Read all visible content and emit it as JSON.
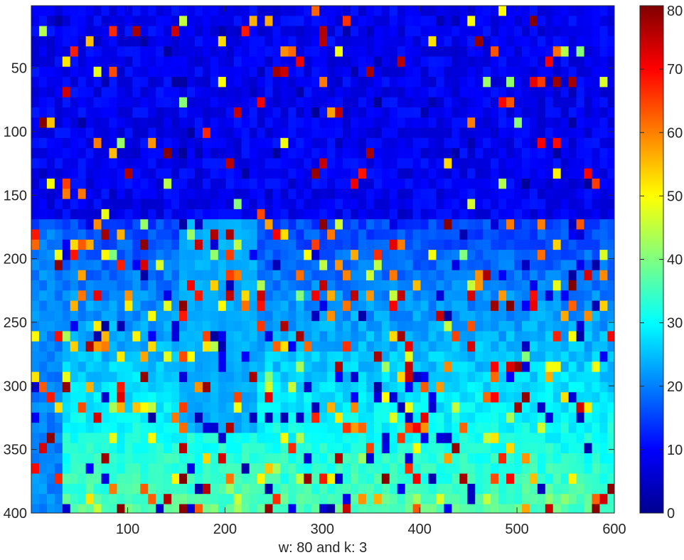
{
  "chart_data": {
    "type": "heatmap",
    "title": "",
    "xlabel": "w: 80 and k: 3",
    "ylabel": "",
    "xlim": [
      1,
      600
    ],
    "ylim": [
      1,
      400
    ],
    "y_direction": "reversed",
    "x_ticks": [
      100,
      200,
      300,
      400,
      500,
      600
    ],
    "x_tick_labels": [
      "100",
      "200",
      "300",
      "400",
      "500",
      "600"
    ],
    "y_ticks": [
      50,
      100,
      150,
      200,
      250,
      300,
      350,
      400
    ],
    "y_tick_labels": [
      "50",
      "100",
      "150",
      "200",
      "250",
      "300",
      "350",
      "400"
    ],
    "colormap": "jet",
    "clim": [
      0,
      80
    ],
    "colorbar": {
      "position": "right",
      "ticks": [
        0,
        10,
        20,
        30,
        40,
        50,
        60,
        70,
        80
      ],
      "tick_labels": [
        "0",
        "10",
        "20",
        "30",
        "40",
        "50",
        "60",
        "70",
        "80"
      ]
    },
    "grid": false,
    "description_values": {
      "upper_region_typical_value": 6,
      "lower_region_typical_value": 30,
      "outlier_values_range": [
        40,
        80
      ]
    }
  }
}
